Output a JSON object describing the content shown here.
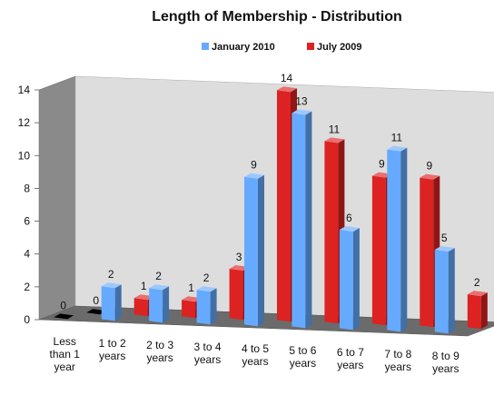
{
  "chart_data": {
    "type": "bar",
    "title": "Length of Membership - Distribution",
    "xlabel": "",
    "ylabel": "",
    "ylim": [
      0,
      14
    ],
    "yticks": [
      0,
      2,
      4,
      6,
      8,
      10,
      12,
      14
    ],
    "grid": false,
    "legend_position": "top",
    "categories": [
      [
        "Less",
        "than 1",
        "year"
      ],
      [
        "1 to 2",
        "years"
      ],
      [
        "2 to 3",
        "years"
      ],
      [
        "3 to 4",
        "years"
      ],
      [
        "4 to 5",
        "years"
      ],
      [
        "5 to 6",
        "years"
      ],
      [
        "6 to 7",
        "years"
      ],
      [
        "7 to 8",
        "years"
      ],
      [
        "8 to 9",
        "years"
      ]
    ],
    "series": [
      {
        "name": "January 2010",
        "color": "#66aaff",
        "values": [
          0,
          2,
          2,
          2,
          9,
          13,
          6,
          11,
          5
        ]
      },
      {
        "name": "July 2009",
        "color": "#dd2222",
        "values": [
          0,
          1,
          1,
          3,
          14,
          11,
          9,
          9,
          2
        ]
      }
    ]
  }
}
